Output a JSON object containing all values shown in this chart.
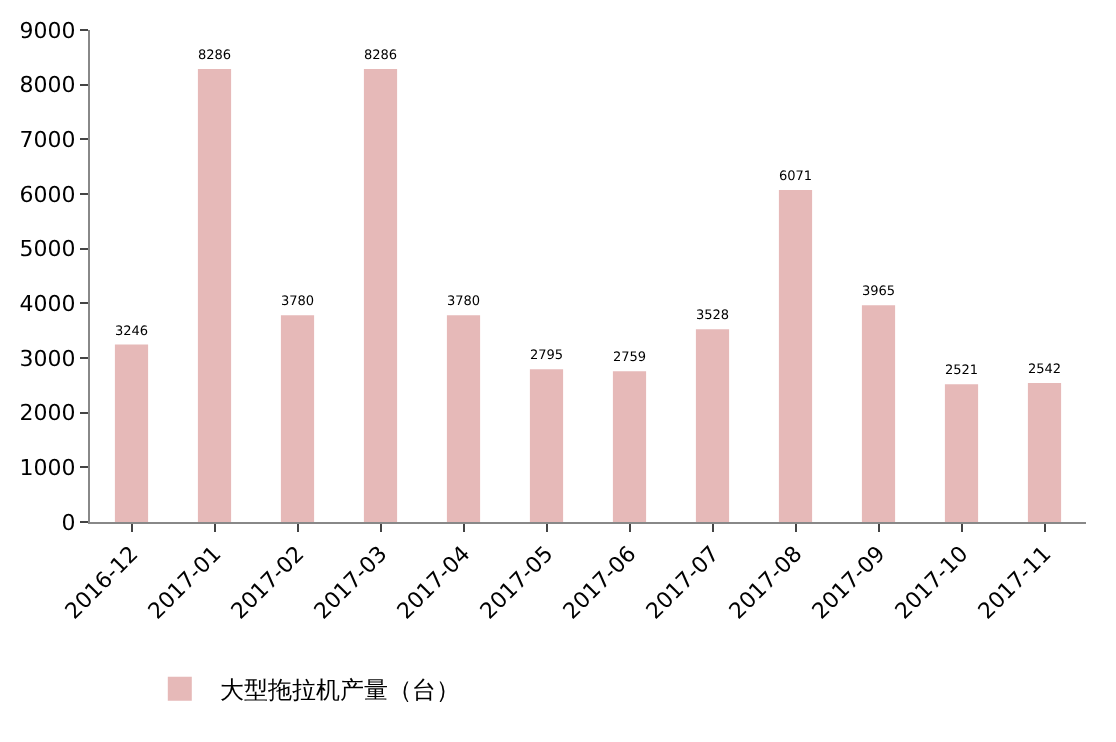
{
  "chart_data": {
    "type": "bar",
    "categories": [
      "2016-12",
      "2017-01",
      "2017-02",
      "2017-03",
      "2017-04",
      "2017-05",
      "2017-06",
      "2017-07",
      "2017-08",
      "2017-09",
      "2017-10",
      "2017-11"
    ],
    "series": [
      {
        "name": "大型拖拉机产量（台）",
        "color": "#e6b9b8",
        "values": [
          3246,
          8286,
          3780,
          8286,
          3780,
          2795,
          2759,
          3528,
          6071,
          3965,
          2521,
          2542
        ]
      }
    ],
    "ylim": [
      0,
      9000
    ],
    "yticks": [
      0,
      1000,
      2000,
      3000,
      4000,
      5000,
      6000,
      7000,
      8000,
      9000
    ],
    "grid": false,
    "legend": "bottom",
    "data_labels": true
  }
}
